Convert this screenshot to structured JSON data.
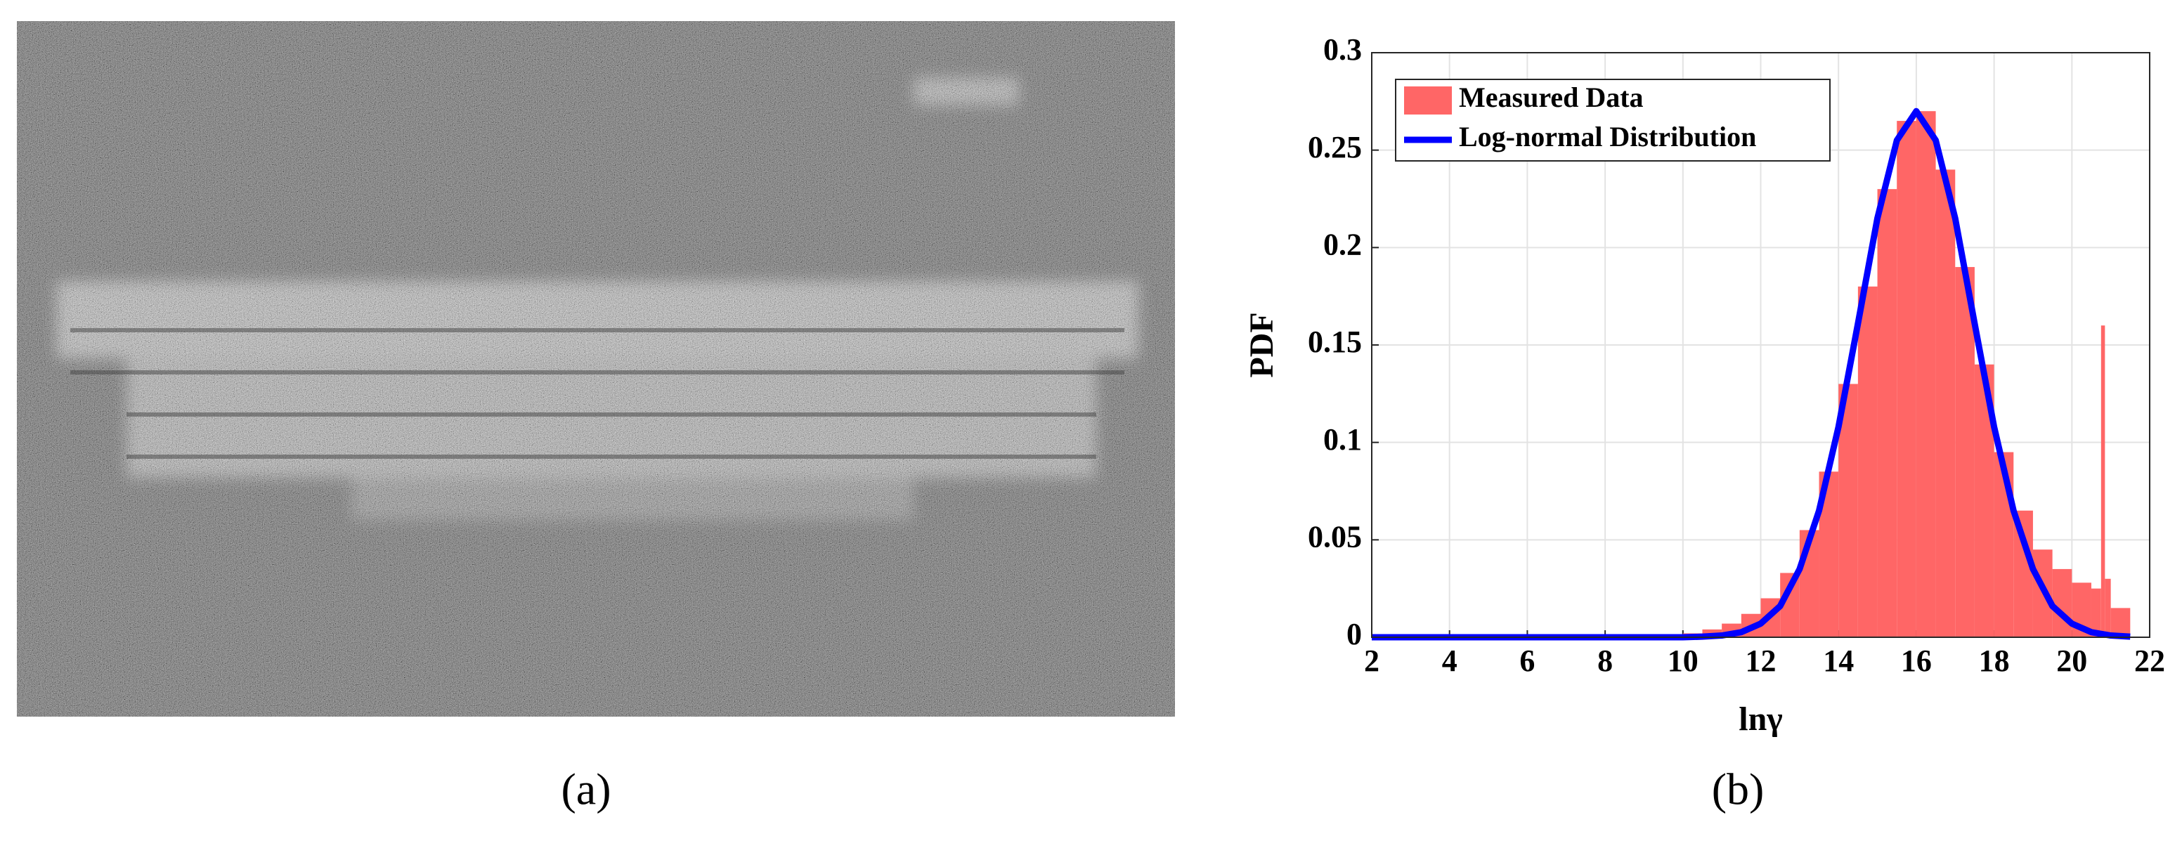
{
  "caption_a": "(a)",
  "caption_b": "(b)",
  "chart_data": {
    "type": "histogram",
    "xlabel": "lnγ",
    "ylabel": "PDF",
    "xlim": [
      2,
      22
    ],
    "ylim": [
      0,
      0.3
    ],
    "xticks": [
      2,
      4,
      6,
      8,
      10,
      12,
      14,
      16,
      18,
      20,
      22
    ],
    "yticks": [
      0,
      0.05,
      0.1,
      0.15,
      0.2,
      0.25,
      0.3
    ],
    "grid": true,
    "legend": "upper left",
    "series": [
      {
        "name": "Measured Data",
        "color": "#ff6666",
        "bins": [
          10,
          10.5,
          11,
          11.5,
          12,
          12.5,
          13,
          13.5,
          14,
          14.5,
          15,
          15.5,
          16,
          16.5,
          17,
          17.5,
          18,
          18.5,
          19,
          19.5,
          20,
          20.5,
          20.75,
          20.85,
          21,
          21.5
        ],
        "values": [
          0.002,
          0.004,
          0.007,
          0.012,
          0.02,
          0.033,
          0.055,
          0.085,
          0.13,
          0.18,
          0.23,
          0.265,
          0.27,
          0.24,
          0.19,
          0.14,
          0.095,
          0.065,
          0.045,
          0.035,
          0.028,
          0.025,
          0.16,
          0.03,
          0.015
        ]
      },
      {
        "name": "Log-normal Distribution",
        "type": "line",
        "color": "#0000ff",
        "x": [
          2,
          10,
          10.5,
          11,
          11.5,
          12,
          12.5,
          13,
          13.5,
          14,
          14.5,
          15,
          15.5,
          16,
          16.5,
          17,
          17.5,
          18,
          18.5,
          19,
          19.5,
          20,
          20.5,
          21,
          21.5
        ],
        "values": [
          0,
          0,
          0.0003,
          0.0009,
          0.0026,
          0.007,
          0.016,
          0.035,
          0.065,
          0.108,
          0.161,
          0.215,
          0.255,
          0.27,
          0.255,
          0.215,
          0.161,
          0.108,
          0.065,
          0.035,
          0.016,
          0.007,
          0.0026,
          0.0009,
          0.0003
        ]
      }
    ]
  }
}
